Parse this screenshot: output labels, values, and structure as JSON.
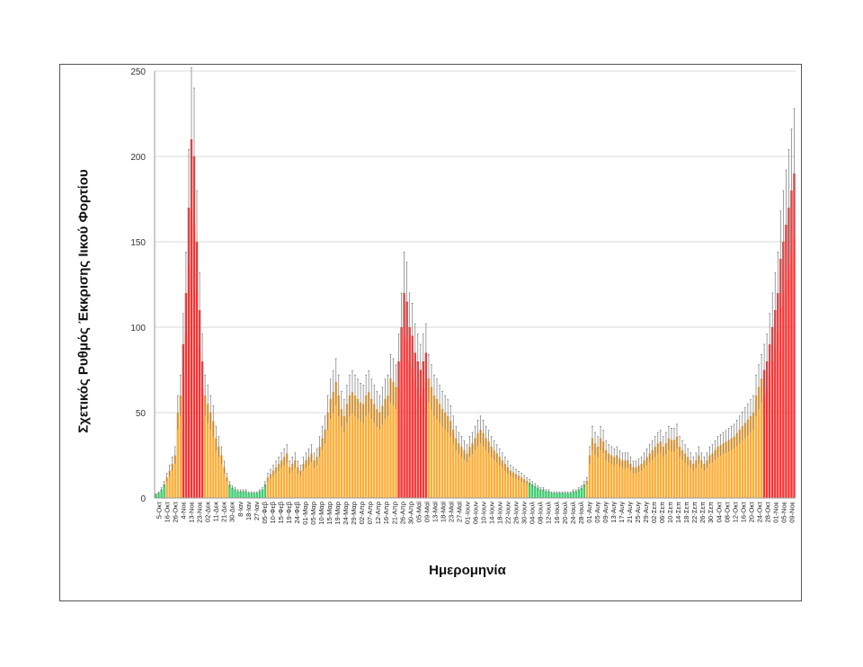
{
  "chart_data": {
    "type": "bar",
    "xlabel": "Ημερομηνία",
    "ylabel": "Σχετικός Ρυθμός Έκκρισης Ιικού Φορτίου",
    "ylim": [
      0,
      250
    ],
    "yticks": [
      0,
      50,
      100,
      150,
      200,
      250
    ],
    "grid": true,
    "error_bars": true,
    "colors": {
      "high": "#ff3030",
      "medium": "#ffac33",
      "low": "#3dcc70",
      "error_bar": "#777777",
      "grid": "#d9d9d9"
    },
    "x_tick_labels": [
      "5-Οκτ",
      "16-Οκτ",
      "26-Οκτ",
      "4-Νοε",
      "13-Νοε",
      "23-Νοε",
      "02-Δεκ",
      "11-Δεκ",
      "21-Δεκ",
      "30-Δεκ",
      "8-Ιαν",
      "18-Ιαν",
      "27-Ιαν",
      "05-Φεβ",
      "10-Φεβ",
      "15-Φεβ",
      "19-Φεβ",
      "24-Φεβ",
      "01-Μαρ",
      "05-Μαρ",
      "10-Μαρ",
      "15-Μαρ",
      "19-Μαρ",
      "24-Μαρ",
      "29-Μαρ",
      "02-Απρ",
      "07-Απρ",
      "12-Απρ",
      "16-Απρ",
      "21-Απρ",
      "26-Απρ",
      "30-Απρ",
      "05-Μαϊ",
      "09-Μαϊ",
      "13-Μαϊ",
      "18-Μαϊ",
      "23-Μαϊ",
      "27-Μαϊ",
      "01-Ιουν",
      "06-Ιουν",
      "10-Ιουν",
      "14-Ιουν",
      "18-Ιουν",
      "22-Ιουν",
      "26-Ιουν",
      "30-Ιουν",
      "04-Ιουλ",
      "08-Ιουλ",
      "12-Ιουλ",
      "16-Ιουλ",
      "20-Ιουλ",
      "24-Ιουλ",
      "28-Ιουλ",
      "01-Αυγ",
      "05-Αυγ",
      "09-Αυγ",
      "13-Αυγ",
      "17-Αυγ",
      "21-Αυγ",
      "25-Αυγ",
      "29-Αυγ",
      "02-Σεπ",
      "06-Σεπ",
      "10-Σεπ",
      "14-Σεπ",
      "18-Σεπ",
      "22-Σεπ",
      "26-Σεπ",
      "30-Σεπ",
      "04-Οκτ",
      "08-Οκτ",
      "12-Οκτ",
      "16-Οκτ",
      "20-Οκτ",
      "24-Οκτ",
      "28-Οκτ",
      "01-Νοε",
      "05-Νοε",
      "09-Νοε"
    ],
    "values": [
      2,
      3,
      5,
      8,
      12,
      16,
      20,
      25,
      50,
      60,
      90,
      120,
      170,
      210,
      200,
      150,
      110,
      80,
      60,
      55,
      50,
      45,
      35,
      30,
      25,
      18,
      12,
      8,
      6,
      5,
      4,
      4,
      4,
      4,
      3,
      3,
      3,
      3,
      4,
      5,
      8,
      12,
      14,
      16,
      18,
      20,
      22,
      24,
      26,
      18,
      20,
      22,
      18,
      16,
      20,
      22,
      24,
      26,
      22,
      24,
      30,
      35,
      40,
      50,
      58,
      62,
      68,
      60,
      52,
      48,
      55,
      60,
      62,
      60,
      58,
      56,
      55,
      60,
      62,
      58,
      55,
      52,
      50,
      54,
      58,
      60,
      70,
      68,
      65,
      80,
      100,
      120,
      115,
      100,
      95,
      85,
      80,
      75,
      80,
      85,
      70,
      65,
      60,
      58,
      55,
      52,
      50,
      48,
      45,
      40,
      35,
      32,
      30,
      28,
      26,
      30,
      32,
      35,
      38,
      40,
      38,
      35,
      33,
      30,
      28,
      26,
      24,
      22,
      20,
      18,
      16,
      15,
      14,
      13,
      12,
      11,
      10,
      9,
      8,
      7,
      6,
      5,
      5,
      4,
      4,
      3,
      3,
      3,
      3,
      3,
      3,
      3,
      3,
      4,
      4,
      5,
      6,
      8,
      10,
      25,
      35,
      32,
      30,
      35,
      33,
      28,
      26,
      25,
      24,
      25,
      23,
      22,
      22,
      22,
      20,
      18,
      18,
      19,
      20,
      22,
      24,
      26,
      28,
      30,
      32,
      33,
      30,
      32,
      35,
      34,
      34,
      36,
      30,
      28,
      26,
      24,
      22,
      20,
      22,
      25,
      22,
      20,
      22,
      25,
      26,
      28,
      30,
      31,
      32,
      33,
      34,
      35,
      36,
      38,
      40,
      42,
      44,
      46,
      48,
      50,
      60,
      65,
      70,
      75,
      80,
      90,
      100,
      110,
      120,
      140,
      150,
      160,
      170,
      180,
      190
    ],
    "errors": [
      0.4,
      0.6,
      1,
      1.6,
      2.4,
      3.2,
      4,
      5,
      10,
      12,
      18,
      24,
      34,
      42,
      40,
      30,
      22,
      16,
      12,
      11,
      10,
      9,
      7,
      6,
      5,
      3.6,
      2.4,
      1.6,
      1.2,
      1,
      0.8,
      0.8,
      0.8,
      0.8,
      0.6,
      0.6,
      0.6,
      0.6,
      0.8,
      1,
      1.6,
      2.4,
      2.8,
      3.2,
      3.6,
      4,
      4.4,
      4.8,
      5.2,
      3.6,
      4,
      4.4,
      3.6,
      3.2,
      4,
      4.4,
      4.8,
      5.2,
      4.4,
      4.8,
      6,
      7,
      8,
      10,
      11.6,
      12.4,
      13.6,
      12,
      10.4,
      9.6,
      11,
      12,
      12.4,
      12,
      11.6,
      11.2,
      11,
      12,
      12.4,
      11.6,
      11,
      10.4,
      10,
      10.8,
      11.6,
      12,
      14,
      13.6,
      13,
      16,
      20,
      24,
      23,
      20,
      19,
      17,
      16,
      15,
      16,
      17,
      14,
      13,
      12,
      11.6,
      11,
      10.4,
      10,
      9.6,
      9,
      8,
      7,
      6.4,
      6,
      5.6,
      5.2,
      6,
      6.4,
      7,
      7.6,
      8,
      7.6,
      7,
      6.6,
      6,
      5.6,
      5.2,
      4.8,
      4.4,
      4,
      3.6,
      3.2,
      3,
      2.8,
      2.6,
      2.4,
      2.2,
      2,
      1.8,
      1.6,
      1.4,
      1.2,
      1,
      1,
      0.8,
      0.8,
      0.6,
      0.6,
      0.6,
      0.6,
      0.6,
      0.6,
      0.6,
      0.6,
      0.8,
      0.8,
      1,
      1.2,
      1.6,
      2,
      5,
      7,
      6.4,
      6,
      7,
      6.6,
      5.6,
      5.2,
      5,
      4.8,
      5,
      4.6,
      4.4,
      4.4,
      4.4,
      4,
      3.6,
      3.6,
      3.8,
      4,
      4.4,
      4.8,
      5.2,
      5.6,
      6,
      6.4,
      6.6,
      6,
      6.4,
      7,
      6.8,
      6.8,
      7.2,
      6,
      5.6,
      5.2,
      4.8,
      4.4,
      4,
      4.4,
      5,
      4.4,
      4,
      4.4,
      5,
      5.2,
      5.6,
      6,
      6.2,
      6.4,
      6.6,
      6.8,
      7,
      7.2,
      7.6,
      8,
      8.4,
      8.8,
      9.2,
      9.6,
      10,
      12,
      13,
      14,
      15,
      16,
      18,
      20,
      22,
      24,
      28,
      30,
      32,
      34,
      36,
      38
    ]
  }
}
